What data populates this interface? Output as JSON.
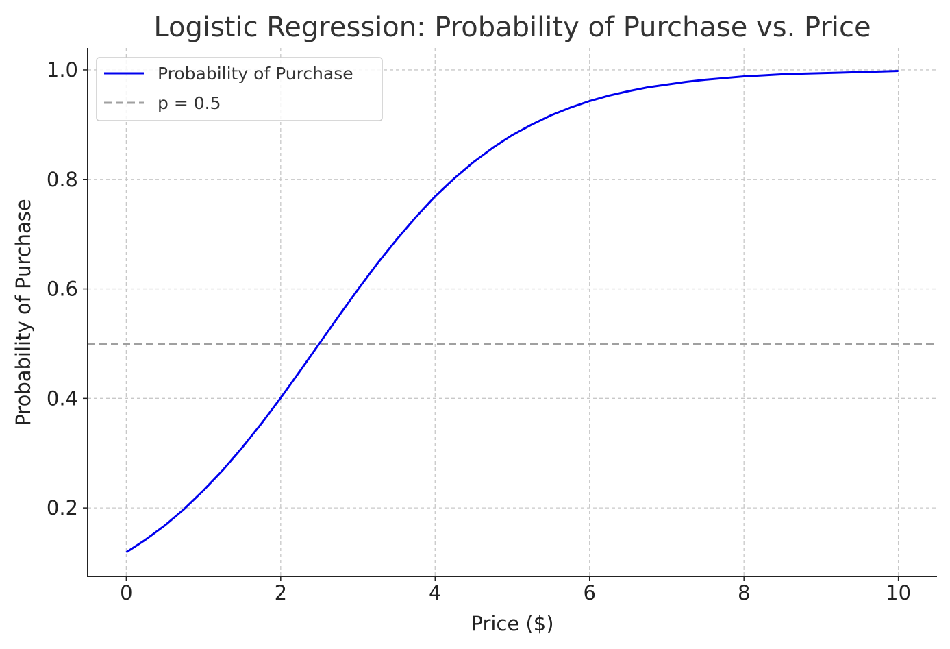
{
  "chart_data": {
    "type": "line",
    "title": "Logistic Regression: Probability of Purchase vs. Price",
    "xlabel": "Price ($)",
    "ylabel": "Probability of Purchase",
    "xlim": [
      -0.5,
      10.5
    ],
    "ylim": [
      0.075,
      1.04
    ],
    "x_ticks": [
      0,
      2,
      4,
      6,
      8,
      10
    ],
    "x_tick_labels": [
      "0",
      "2",
      "4",
      "6",
      "8",
      "10"
    ],
    "y_ticks": [
      0.2,
      0.4,
      0.6,
      0.8,
      1.0
    ],
    "y_tick_labels": [
      "0.2",
      "0.4",
      "0.6",
      "0.8",
      "1.0"
    ],
    "grid": true,
    "legend_position": "top-left",
    "series": [
      {
        "name": "Probability of Purchase",
        "color": "#0000ee",
        "style": "solid",
        "x": [
          0,
          0.25,
          0.5,
          0.75,
          1,
          1.25,
          1.5,
          1.75,
          2,
          2.25,
          2.5,
          2.75,
          3,
          3.25,
          3.5,
          3.75,
          4,
          4.25,
          4.5,
          4.75,
          5,
          5.25,
          5.5,
          5.75,
          6,
          6.25,
          6.5,
          6.75,
          7,
          7.25,
          7.5,
          7.75,
          8,
          8.25,
          8.5,
          8.75,
          9,
          9.25,
          9.5,
          9.75,
          10
        ],
        "y": [
          0.119,
          0.142,
          0.168,
          0.198,
          0.232,
          0.269,
          0.31,
          0.354,
          0.401,
          0.45,
          0.5,
          0.55,
          0.599,
          0.646,
          0.69,
          0.731,
          0.769,
          0.802,
          0.832,
          0.858,
          0.881,
          0.9,
          0.917,
          0.931,
          0.943,
          0.953,
          0.961,
          0.968,
          0.973,
          0.978,
          0.982,
          0.985,
          0.988,
          0.99,
          0.992,
          0.993,
          0.994,
          0.995,
          0.996,
          0.997,
          0.998
        ]
      },
      {
        "name": "p = 0.5",
        "color": "#a0a0a0",
        "style": "dashed",
        "y_constant": 0.5
      }
    ]
  }
}
